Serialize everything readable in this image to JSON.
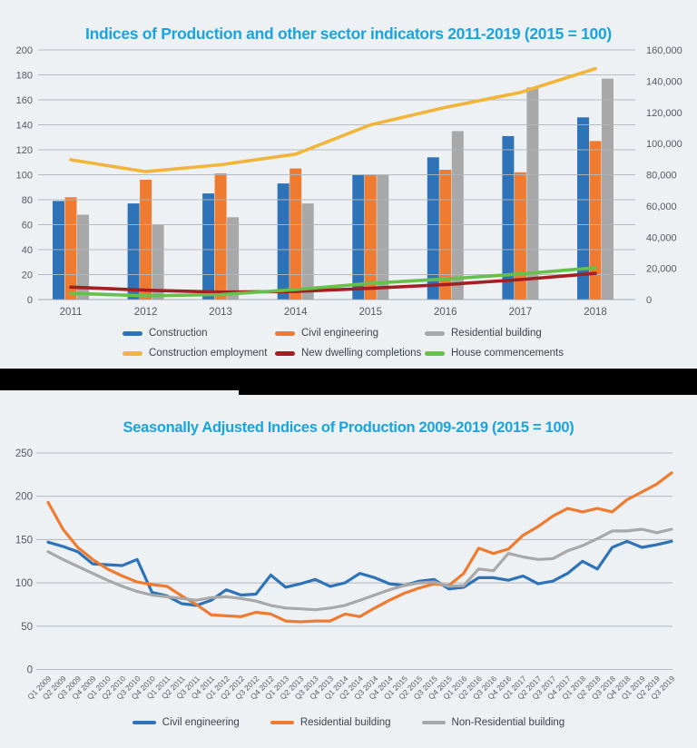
{
  "page": {
    "background": "#edf1f4",
    "divider_color": "#000000",
    "title_color": "#19a4e0",
    "grid_color": "#b2b7bd",
    "axis_text_color": "#55585c"
  },
  "chart_data": [
    {
      "type": "bar+line",
      "title": "Indices of Production and other sector indicators 2011-2019 (2015 = 100)",
      "categories": [
        "2011",
        "2012",
        "2013",
        "2014",
        "2015",
        "2016",
        "2017",
        "2018"
      ],
      "left_axis": {
        "min": 0,
        "max": 200,
        "step": 20,
        "ticks": [
          "0",
          "20",
          "40",
          "60",
          "80",
          "100",
          "120",
          "140",
          "160",
          "180",
          "200"
        ]
      },
      "right_axis": {
        "min": 0,
        "max": 160000,
        "step": 20000,
        "ticks": [
          "0",
          "20,000",
          "40,000",
          "60,000",
          "80,000",
          "100,000",
          "120,000",
          "140,000",
          "160,000"
        ]
      },
      "bar_series": [
        {
          "name": "Construction",
          "color": "#2e73b8",
          "axis": "left",
          "values": [
            79,
            77,
            85,
            93,
            100,
            114,
            131,
            146
          ]
        },
        {
          "name": "Civil engineering",
          "color": "#ee7b2f",
          "axis": "left",
          "values": [
            82,
            96,
            101,
            105,
            100,
            104,
            102,
            127
          ]
        },
        {
          "name": "Residential building",
          "color": "#a8a8a8",
          "axis": "left",
          "values": [
            68,
            60,
            66,
            77,
            100,
            135,
            170,
            177
          ]
        }
      ],
      "line_series": [
        {
          "name": "Construction employment",
          "color": "#f1b53b",
          "axis": "right",
          "values": [
            89600,
            82000,
            86400,
            93200,
            112000,
            123200,
            132800,
            148000
          ]
        },
        {
          "name": "New dwelling completions",
          "color": "#a51e22",
          "axis": "right",
          "values": [
            8000,
            6000,
            4800,
            5200,
            7200,
            9600,
            12800,
            16800
          ]
        },
        {
          "name": "House commencements",
          "color": "#68c04a",
          "axis": "right",
          "values": [
            4000,
            2400,
            3200,
            6400,
            10400,
            13200,
            16400,
            20400
          ]
        }
      ],
      "legend": [
        {
          "name": "Construction",
          "color": "#2e73b8"
        },
        {
          "name": "Civil engineering",
          "color": "#ee7b2f"
        },
        {
          "name": "Residential building",
          "color": "#a8a8a8"
        },
        {
          "name": "Construction employment",
          "color": "#f1b53b"
        },
        {
          "name": "New dwelling completions",
          "color": "#a51e22"
        },
        {
          "name": "House commencements",
          "color": "#68c04a"
        }
      ]
    },
    {
      "type": "line",
      "title": "Seasonally Adjusted Indices of Production 2009-2019 (2015 = 100)",
      "x_labels": [
        "Q1 2009",
        "Q2 2009",
        "Q3 2009",
        "Q4 2009",
        "Q1 2010",
        "Q2 2010",
        "Q3 2010",
        "Q4 2010",
        "Q1 2011",
        "Q2 2011",
        "Q3 2011",
        "Q4 2011",
        "Q1 2012",
        "Q2 2012",
        "Q3 2012",
        "Q4 2012",
        "Q1 2013",
        "Q2 2013",
        "Q3 2013",
        "Q4 2013",
        "Q1 2014",
        "Q2 2014",
        "Q3 2014",
        "Q4 2014",
        "Q1 2015",
        "Q2 2015",
        "Q3 2015",
        "Q4 2015",
        "Q1 2016",
        "Q2 2016",
        "Q3 2016",
        "Q4 2016",
        "Q1 2017",
        "Q2 2017",
        "Q3 2017",
        "Q4 2017",
        "Q1 2018",
        "Q2 2018",
        "Q3 2018",
        "Q4 2018",
        "Q1 2019",
        "Q2 2019",
        "Q3 2019"
      ],
      "y_axis": {
        "min": 0,
        "max": 250,
        "step": 50,
        "ticks": [
          "0",
          "50",
          "100",
          "150",
          "200",
          "250"
        ]
      },
      "series": [
        {
          "name": "Civil engineering",
          "color": "#2e73b8",
          "values": [
            147,
            142,
            136,
            122,
            121,
            120,
            127,
            89,
            85,
            76,
            74,
            80,
            92,
            86,
            87,
            109,
            95,
            99,
            104,
            96,
            100,
            111,
            106,
            99,
            97,
            102,
            104,
            93,
            95,
            106,
            106,
            103,
            108,
            99,
            102,
            111,
            125,
            116,
            141,
            148,
            141,
            144,
            148
          ]
        },
        {
          "name": "Residential building",
          "color": "#ee7b2f",
          "values": [
            193,
            162,
            141,
            127,
            116,
            108,
            101,
            98,
            96,
            85,
            75,
            63,
            62,
            61,
            66,
            64,
            56,
            55,
            56,
            56,
            64,
            61,
            71,
            80,
            88,
            94,
            99,
            97,
            111,
            140,
            134,
            139,
            155,
            165,
            177,
            186,
            182,
            186,
            182,
            196,
            205,
            214,
            227
          ]
        },
        {
          "name": "Non-Residential building",
          "color": "#a8a8a8",
          "values": [
            136,
            127,
            119,
            111,
            103,
            96,
            90,
            86,
            84,
            82,
            80,
            83,
            84,
            82,
            79,
            74,
            71,
            70,
            69,
            71,
            74,
            80,
            86,
            92,
            97,
            100,
            101,
            96,
            97,
            116,
            114,
            134,
            130,
            127,
            128,
            137,
            143,
            151,
            160,
            160,
            162,
            158,
            162
          ]
        }
      ],
      "legend": [
        {
          "name": "Civil engineering",
          "color": "#2e73b8"
        },
        {
          "name": "Residential building",
          "color": "#ee7b2f"
        },
        {
          "name": "Non-Residential building",
          "color": "#a8a8a8"
        }
      ]
    }
  ]
}
